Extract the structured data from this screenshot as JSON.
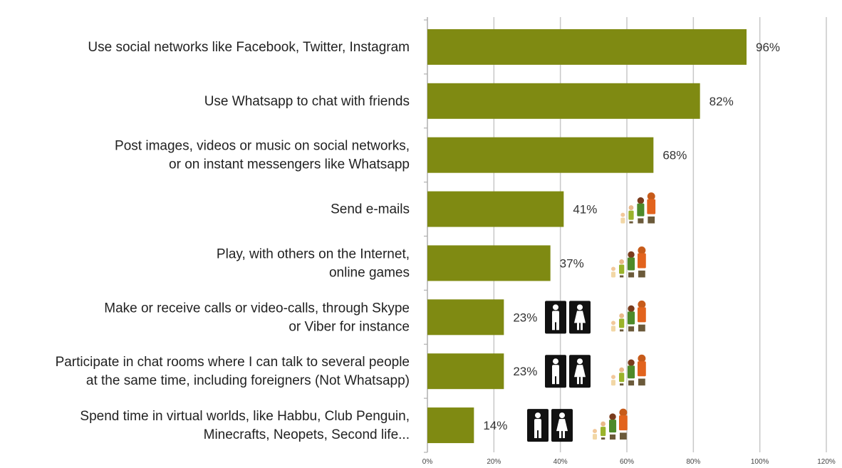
{
  "chart_data": {
    "type": "bar",
    "orientation": "horizontal",
    "categories": [
      [
        "Use social networks like Facebook, Twitter, Instagram"
      ],
      [
        "Use Whatsapp to chat with friends"
      ],
      [
        "Post images, videos or music on social networks,",
        "or on instant messengers like Whatsapp"
      ],
      [
        "Send e-mails"
      ],
      [
        "Play, with others on the Internet,",
        "online games"
      ],
      [
        "Make or receive calls or video-calls, through Skype",
        "or Viber for instance"
      ],
      [
        "Participate in chat rooms where I can talk to several people",
        "at the same time, including foreigners (Not Whatsapp)"
      ],
      [
        "Spend time in virtual worlds, like Habbu, Club Penguin,",
        "Minecrafts, Neopets, Second life..."
      ]
    ],
    "values": [
      96,
      82,
      68,
      41,
      37,
      23,
      23,
      14
    ],
    "value_labels": [
      "96%",
      "82%",
      "68%",
      "41%",
      "37%",
      "23%",
      "23%",
      "14%"
    ],
    "xlim": [
      0,
      120
    ],
    "xticks": [
      "0%",
      "20%",
      "40%",
      "60%",
      "80%",
      "100%",
      "120%"
    ],
    "grid": "vertical",
    "bar_color": "#7f8a12",
    "gender_icon_rows": [
      5,
      6,
      7
    ],
    "family_icon_rows": [
      3,
      4,
      5,
      6,
      7
    ]
  }
}
